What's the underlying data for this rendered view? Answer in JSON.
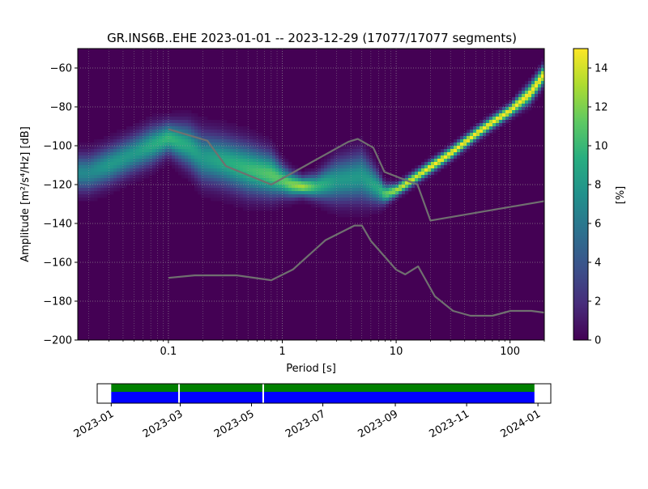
{
  "chart_data": [
    {
      "type": "heatmap",
      "title": "GR.INS6B..EHE   2023-01-01 -- 2023-12-29  (17077/17077 segments)",
      "xlabel": "Period [s]",
      "ylabel": "Amplitude [m²/s⁴/Hz] [dB]",
      "x_scale": "log",
      "xlim": [
        0.016,
        200
      ],
      "ylim": [
        -200,
        -50
      ],
      "x_ticks": [
        {
          "v": 0.1,
          "label": "0.1"
        },
        {
          "v": 1,
          "label": "1"
        },
        {
          "v": 10,
          "label": "10"
        },
        {
          "v": 100,
          "label": "100"
        }
      ],
      "y_ticks": [
        -200,
        -180,
        -160,
        -140,
        -120,
        -100,
        -80,
        -60
      ],
      "grid": true,
      "colormap": "viridis",
      "colorbar": {
        "label": "[%]",
        "min": 0,
        "max": 15,
        "ticks": [
          0,
          2,
          4,
          6,
          8,
          10,
          12,
          14
        ]
      },
      "psd_mode_curve": {
        "period": [
          0.02,
          0.03,
          0.05,
          0.07,
          0.1,
          0.15,
          0.2,
          0.3,
          0.5,
          0.8,
          1.0,
          1.2,
          1.5,
          2.0,
          3.0,
          5.0,
          7.0,
          8.0,
          10,
          12,
          15,
          20,
          30,
          50,
          70,
          100,
          150,
          200
        ],
        "amplitude_db": [
          -114,
          -110,
          -104,
          -100,
          -96,
          -100,
          -106,
          -108,
          -112,
          -115,
          -118,
          -120,
          -121,
          -121,
          -118,
          -116,
          -122,
          -125,
          -123,
          -120,
          -116,
          -111,
          -104,
          -94,
          -88,
          -82,
          -73,
          -63
        ],
        "band_width_db": [
          6,
          6,
          6,
          6,
          5,
          7,
          8,
          8,
          8,
          7,
          5,
          4,
          3,
          4,
          7,
          8,
          5,
          3,
          2,
          2,
          2,
          2,
          2,
          2,
          2,
          2,
          3,
          3
        ],
        "peak_percent": [
          7,
          8,
          8,
          9,
          10,
          9,
          8,
          9,
          10,
          11,
          11,
          12,
          13,
          10,
          8,
          8,
          9,
          11,
          13,
          14,
          14,
          15,
          15,
          15,
          15,
          15,
          15,
          15
        ]
      },
      "nhnm": {
        "period": [
          0.1,
          0.22,
          0.32,
          0.8,
          3.8,
          4.6,
          6.3,
          7.9,
          15.4,
          20,
          354.8
        ],
        "amplitude_db": [
          -91.5,
          -97.4,
          -110.5,
          -120,
          -98,
          -96.5,
          -101,
          -113.5,
          -120,
          -138.5,
          -126
        ]
      },
      "nlnm": {
        "period": [
          0.1,
          0.17,
          0.4,
          0.8,
          1.24,
          2.4,
          4.3,
          5.0,
          6.0,
          10,
          12,
          15.6,
          21.9,
          31.6,
          45,
          70,
          101,
          154,
          328
        ],
        "amplitude_db": [
          -168,
          -166.7,
          -166.7,
          -169.2,
          -163.7,
          -148.6,
          -141.1,
          -141.1,
          -149,
          -163.8,
          -166.2,
          -162.1,
          -177.5,
          -185,
          -187.5,
          -187.5,
          -185,
          -185,
          -187.5
        ]
      }
    },
    {
      "type": "timeline",
      "xlim": [
        "2022-12-20",
        "2024-01-12"
      ],
      "x_ticks": [
        "2023-01",
        "2023-03",
        "2023-05",
        "2023-07",
        "2023-09",
        "2023-11",
        "2024-01"
      ],
      "data_span": [
        "2023-01-01",
        "2023-12-29"
      ],
      "gaps": [
        "2023-02-28",
        "2023-05-11"
      ],
      "colors": {
        "used": "#008000",
        "available": "#0000ff",
        "gap": "#ffffff"
      }
    }
  ]
}
